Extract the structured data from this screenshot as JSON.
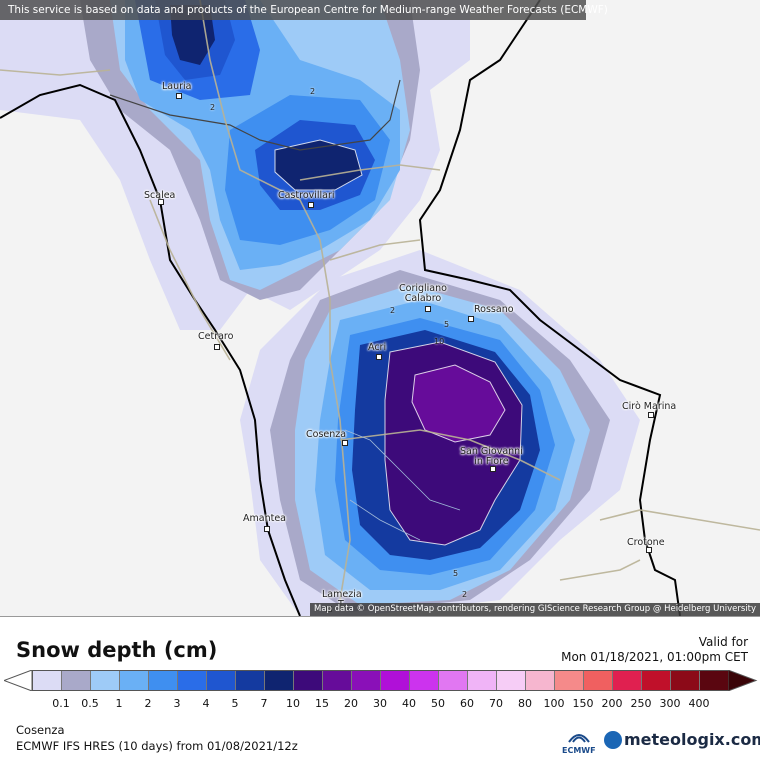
{
  "header": {
    "notice": "This service is based on data and products of the European Centre for Medium-range Weather Forecasts (ECMWF)"
  },
  "attribution": "Map data © OpenStreetMap contributors, rendering GIScience Research Group @ Heidelberg University",
  "cities": [
    {
      "name": "Lauria"
    },
    {
      "name": "Castrovillari"
    },
    {
      "name": "Scalea"
    },
    {
      "name": "Corigliano\nCalabro"
    },
    {
      "name": "Rossano"
    },
    {
      "name": "Acri"
    },
    {
      "name": "Cetraro"
    },
    {
      "name": "Cirò Marina"
    },
    {
      "name": "Cosenza"
    },
    {
      "name": "San Giovanni\nin Fiore"
    },
    {
      "name": "Amantea"
    },
    {
      "name": "Crotone"
    },
    {
      "name": "Lamezia\nT."
    }
  ],
  "contour_labels": [
    "2",
    "2",
    "2",
    "5",
    "10",
    "5",
    "2"
  ],
  "legend": {
    "title": "Snow depth (cm)",
    "ticks": [
      "0.1",
      "0.5",
      "1",
      "2",
      "3",
      "4",
      "5",
      "7",
      "10",
      "15",
      "20",
      "30",
      "40",
      "50",
      "60",
      "70",
      "80",
      "100",
      "150",
      "200",
      "250",
      "300",
      "400"
    ],
    "colors": [
      "#dcdcf5",
      "#a9a9c9",
      "#9ecbf7",
      "#6ab0f5",
      "#3f8ff0",
      "#2a6de8",
      "#1f56d0",
      "#143aa0",
      "#0f2470",
      "#3d0a7a",
      "#660c9a",
      "#8a10b8",
      "#b010d8",
      "#cc33ee",
      "#e177f2",
      "#f0b4f7",
      "#f6cdf6",
      "#f6b6cf",
      "#f58a8a",
      "#f06060",
      "#e02050",
      "#c0102a",
      "#8c0a18",
      "#5a0610"
    ]
  },
  "valid": {
    "label": "Valid for",
    "time": "Mon 01/18/2021, 01:00pm CET"
  },
  "footer": {
    "location": "Cosenza",
    "model": "ECMWF IFS HRES (10 days) from 01/08/2021/12z",
    "ecmwf_logo": "ECMWF",
    "brand": "meteologix.com"
  }
}
